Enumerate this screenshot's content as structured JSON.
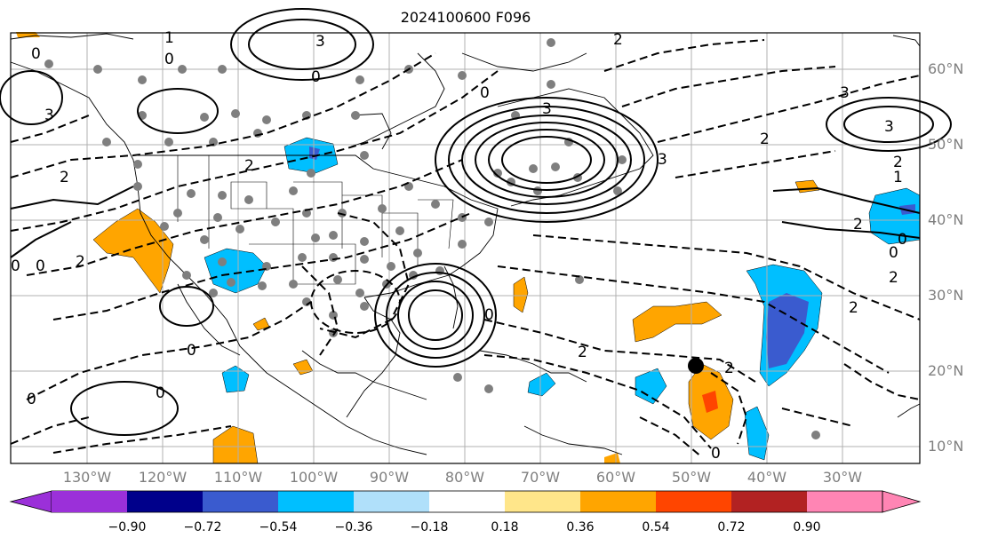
{
  "title": "2024100600 F096",
  "longitude_labels": [
    "130°W",
    "120°W",
    "110°W",
    "100°W",
    "90°W",
    "80°W",
    "70°W",
    "60°W",
    "50°W",
    "40°W",
    "30°W"
  ],
  "latitude_labels": [
    "60°N",
    "50°N",
    "40°N",
    "30°N",
    "20°N",
    "10°N"
  ],
  "colorbar": {
    "ticks": [
      "−0.90",
      "−0.72",
      "−0.54",
      "−0.36",
      "−0.18",
      "0.18",
      "0.36",
      "0.54",
      "0.72",
      "0.90"
    ],
    "colors": [
      "#9b30d9",
      "#00008b",
      "#3a5bcf",
      "#00bfff",
      "#b0e0fa",
      "#ffffff",
      "#ffe68a",
      "#ffa500",
      "#ff4500",
      "#b22222",
      "#ff85b4"
    ]
  },
  "contour_labels": [
    "0",
    "1",
    "2",
    "3"
  ],
  "colors": {
    "line": "#000000",
    "grid": "#b0b0b0",
    "axis_label": "#7f7f7f"
  }
}
